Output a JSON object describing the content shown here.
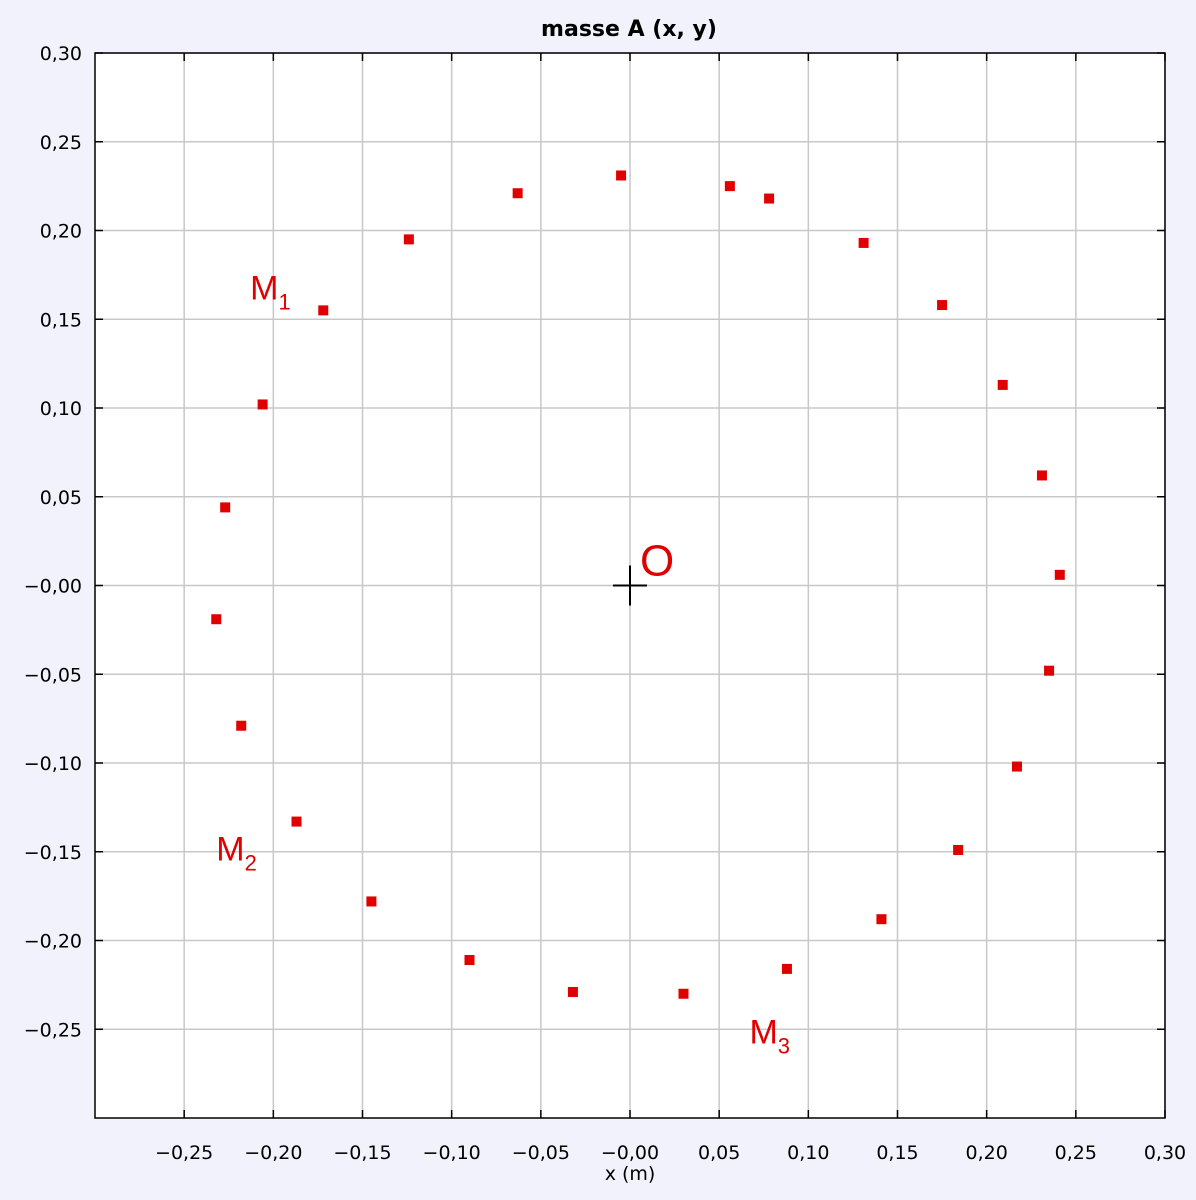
{
  "chart_data": {
    "type": "scatter",
    "title": "masse A (x, y)",
    "xlabel": "x (m)",
    "ylabel": "",
    "xlim": [
      -0.3,
      0.3
    ],
    "ylim": [
      -0.3,
      0.3
    ],
    "x_ticks": [
      -0.25,
      -0.2,
      -0.15,
      -0.1,
      -0.05,
      0.0,
      0.05,
      0.1,
      0.15,
      0.2,
      0.25,
      0.3
    ],
    "x_tick_labels": [
      "−0,25",
      "−0,20",
      "−0,15",
      "−0,10",
      "−0,05",
      "−0,00",
      "0,05",
      "0,10",
      "0,15",
      "0,20",
      "0,25",
      "0,30"
    ],
    "y_ticks": [
      0.3,
      0.25,
      0.2,
      0.15,
      0.1,
      0.05,
      0.0,
      -0.05,
      -0.1,
      -0.15,
      -0.2,
      -0.25
    ],
    "y_tick_labels": [
      "0,30",
      "0,25",
      "0,20",
      "0,15",
      "0,10",
      "0,05",
      "−0,00",
      "−0,05",
      "−0,10",
      "−0,15",
      "−0,20",
      "−0,25"
    ],
    "grid": true,
    "marker_color": "#e00000",
    "points": [
      {
        "x": -0.172,
        "y": 0.155
      },
      {
        "x": -0.124,
        "y": 0.195
      },
      {
        "x": -0.063,
        "y": 0.221
      },
      {
        "x": -0.005,
        "y": 0.231
      },
      {
        "x": 0.056,
        "y": 0.225
      },
      {
        "x": 0.078,
        "y": 0.218
      },
      {
        "x": 0.131,
        "y": 0.193
      },
      {
        "x": 0.175,
        "y": 0.158
      },
      {
        "x": 0.209,
        "y": 0.113
      },
      {
        "x": 0.231,
        "y": 0.062
      },
      {
        "x": 0.241,
        "y": 0.006
      },
      {
        "x": 0.235,
        "y": -0.048
      },
      {
        "x": 0.217,
        "y": -0.102
      },
      {
        "x": 0.184,
        "y": -0.149
      },
      {
        "x": 0.141,
        "y": -0.188
      },
      {
        "x": 0.088,
        "y": -0.216
      },
      {
        "x": 0.03,
        "y": -0.23
      },
      {
        "x": -0.032,
        "y": -0.229
      },
      {
        "x": -0.09,
        "y": -0.211
      },
      {
        "x": -0.145,
        "y": -0.178
      },
      {
        "x": -0.187,
        "y": -0.133
      },
      {
        "x": -0.218,
        "y": -0.079
      },
      {
        "x": -0.232,
        "y": -0.019
      },
      {
        "x": -0.227,
        "y": 0.044
      },
      {
        "x": -0.206,
        "y": 0.102
      }
    ],
    "origin_marker": {
      "x": 0.0,
      "y": 0.0,
      "label": "O"
    },
    "annotations": [
      {
        "label": "M",
        "sub": "1",
        "x": -0.213,
        "y": 0.161
      },
      {
        "label": "M",
        "sub": "2",
        "x": -0.232,
        "y": -0.155
      },
      {
        "label": "M",
        "sub": "3",
        "x": 0.067,
        "y": -0.258
      }
    ]
  }
}
